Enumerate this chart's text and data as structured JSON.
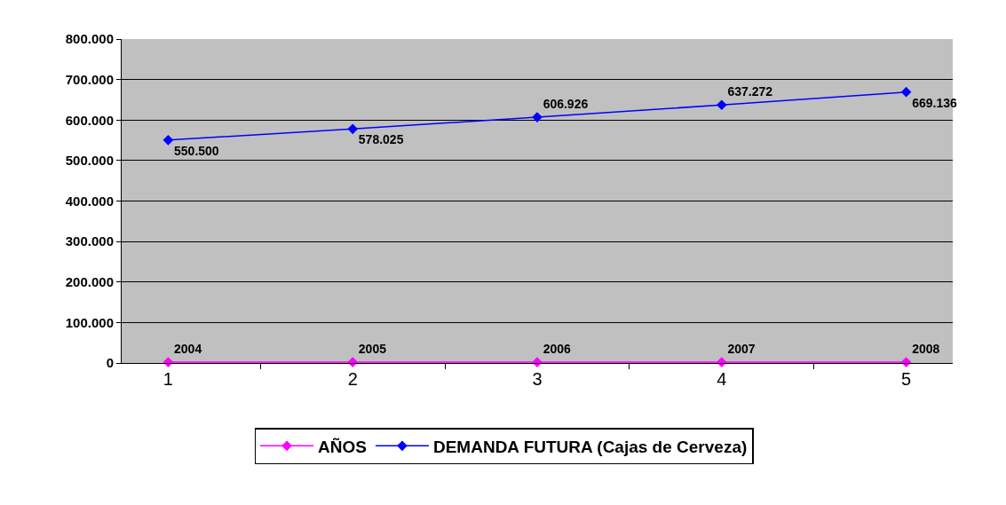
{
  "chart_data": {
    "type": "line",
    "categories": [
      "1",
      "2",
      "3",
      "4",
      "5"
    ],
    "series": [
      {
        "name": "AÑOS",
        "color": "#ff00ff",
        "values": [
          2004,
          2005,
          2006,
          2007,
          2008
        ],
        "value_labels": [
          "2004",
          "2005",
          "2006",
          "2007",
          "2008"
        ]
      },
      {
        "name": "DEMANDA FUTURA (Cajas de Cerveza)",
        "color": "#0000ff",
        "values": [
          550500,
          578025,
          606926,
          637272,
          669136
        ],
        "value_labels": [
          "550.500",
          "578.025",
          "606.926",
          "637.272",
          "669.136"
        ]
      }
    ],
    "ylim": [
      0,
      800000
    ],
    "yticks": [
      {
        "value": 0,
        "label": "0"
      },
      {
        "value": 100000,
        "label": "100.000"
      },
      {
        "value": 200000,
        "label": "200.000"
      },
      {
        "value": 300000,
        "label": "300.000"
      },
      {
        "value": 400000,
        "label": "400.000"
      },
      {
        "value": 500000,
        "label": "500.000"
      },
      {
        "value": 600000,
        "label": "600.000"
      },
      {
        "value": 700000,
        "label": "700.000"
      },
      {
        "value": 800000,
        "label": "800.000"
      }
    ],
    "grid": "y",
    "legend": "bottom",
    "marker": "diamond",
    "line_style": "solid"
  }
}
